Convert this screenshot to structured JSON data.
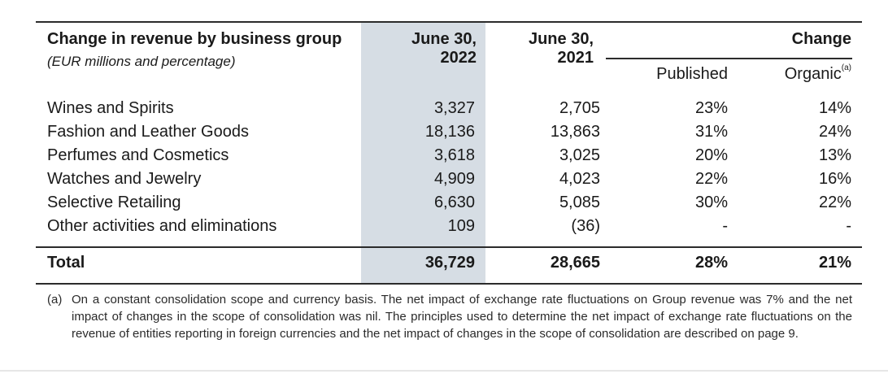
{
  "header": {
    "title": "Change in revenue by business group",
    "subtitle": "(EUR millions and percentage)",
    "col_2022_line1": "June 30,",
    "col_2022_line2": "2022",
    "col_2021_line1": "June 30,",
    "col_2021_line2": "2021",
    "change": "Change",
    "published": "Published",
    "organic": "Organic",
    "organic_sup": "(a)"
  },
  "rows": [
    {
      "label": "Wines and Spirits",
      "y2022": "3,327",
      "y2021": "2,705",
      "published": "23%",
      "organic": "14%"
    },
    {
      "label": "Fashion and Leather Goods",
      "y2022": "18,136",
      "y2021": "13,863",
      "published": "31%",
      "organic": "24%"
    },
    {
      "label": "Perfumes and Cosmetics",
      "y2022": "3,618",
      "y2021": "3,025",
      "published": "20%",
      "organic": "13%"
    },
    {
      "label": "Watches and Jewelry",
      "y2022": "4,909",
      "y2021": "4,023",
      "published": "22%",
      "organic": "16%"
    },
    {
      "label": "Selective Retailing",
      "y2022": "6,630",
      "y2021": "5,085",
      "published": "30%",
      "organic": "22%"
    },
    {
      "label": "Other activities and eliminations",
      "y2022": "109",
      "y2021": "(36)",
      "published": "-",
      "organic": "-"
    }
  ],
  "total": {
    "label": "Total",
    "y2022": "36,729",
    "y2021": "28,665",
    "published": "28%",
    "organic": "21%"
  },
  "footnote": {
    "mark": "(a)",
    "text": "On a constant consolidation scope and currency basis. The net impact of exchange rate fluctuations on Group revenue was 7% and the net impact of changes in the scope of consolidation was nil. The principles used to determine the net impact of exchange rate fluctuations on the revenue of entities reporting in foreign currencies and the net impact of changes in the scope of consolidation are described on page 9."
  }
}
